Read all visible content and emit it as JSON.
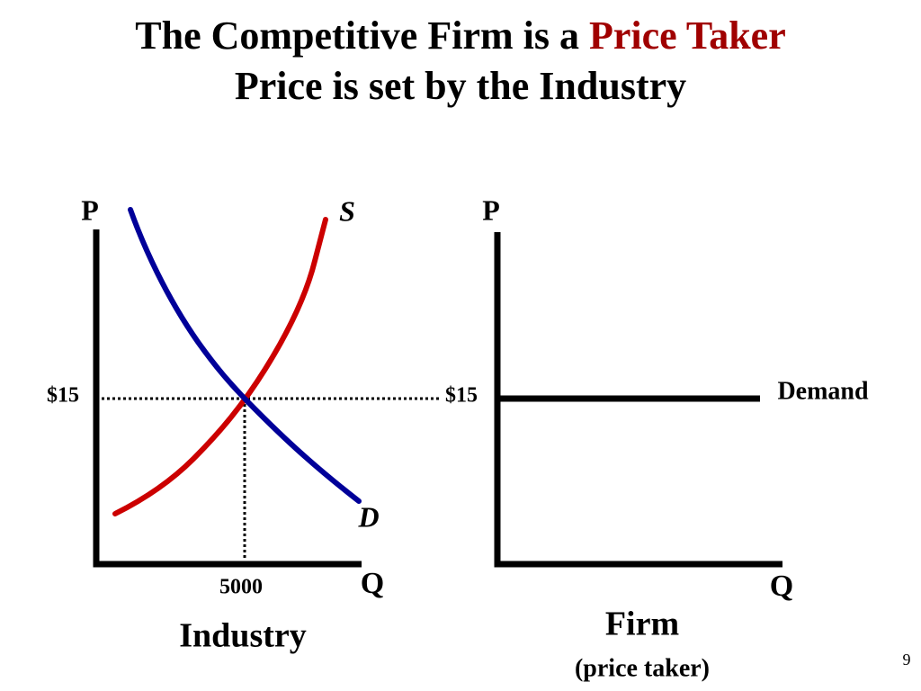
{
  "title": {
    "line1_prefix": "The Competitive Firm is a",
    "line1_highlight": "Price Taker",
    "line2": "Price is set by the Industry"
  },
  "industry": {
    "y_axis_label": "P",
    "x_axis_label": "Q",
    "supply_label": "S",
    "demand_label": "D",
    "price_label": "$15",
    "quantity_label": "5000",
    "caption": "Industry"
  },
  "firm": {
    "y_axis_label": "P",
    "x_axis_label": "Q",
    "price_label": "$15",
    "demand_label": "Demand",
    "caption": "Firm",
    "subcaption": "(price taker)"
  },
  "page_number": "9"
}
